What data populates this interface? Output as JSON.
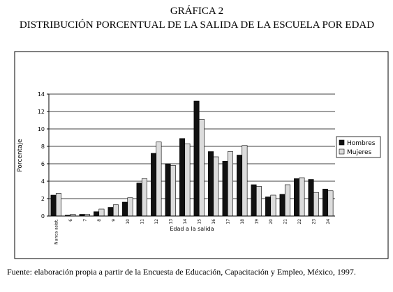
{
  "chart_data": {
    "type": "bar",
    "title": "GRÁFICA 2",
    "subtitle": "DISTRIBUCIÓN PORCENTUAL DE LA SALIDA DE LA ESCUELA POR EDAD",
    "x_label": "Edad a la salida",
    "y_label": "Porcentaje",
    "categories": [
      "Nunca asist.",
      "6",
      "7",
      "8",
      "9",
      "10",
      "11",
      "12",
      "13",
      "14",
      "15",
      "16",
      "17",
      "18",
      "19",
      "20",
      "21",
      "22",
      "23",
      "24"
    ],
    "series": [
      {
        "name": "Hombres",
        "color": "#111111",
        "values": [
          2.4,
          0.1,
          0.2,
          0.5,
          1.0,
          1.6,
          3.8,
          7.2,
          6.0,
          8.9,
          13.2,
          7.4,
          6.3,
          7.0,
          3.6,
          2.2,
          2.5,
          4.3,
          4.2,
          3.1
        ]
      },
      {
        "name": "Mujeres",
        "color": "#dcdcdc",
        "values": [
          2.6,
          0.2,
          0.2,
          0.8,
          1.3,
          2.1,
          4.3,
          8.5,
          5.8,
          8.3,
          11.1,
          6.8,
          7.4,
          8.1,
          3.4,
          2.4,
          3.6,
          4.4,
          2.7,
          2.9
        ]
      }
    ],
    "ylim": [
      0,
      14
    ],
    "yticks": [
      0,
      2,
      4,
      6,
      8,
      10,
      12,
      14
    ],
    "grid": true,
    "legend": "right"
  },
  "source": "Fuente: elaboración propia a partir de la Encuesta de Educación, Capacitación y Empleo, México, 1997."
}
